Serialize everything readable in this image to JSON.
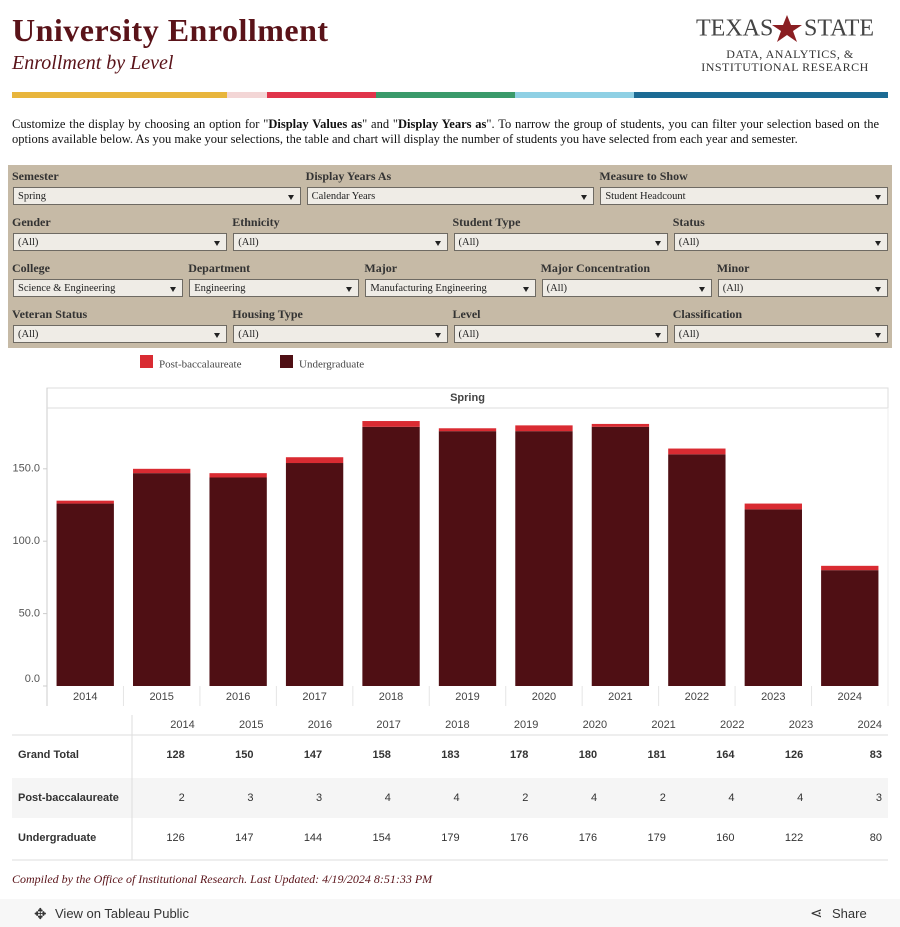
{
  "header": {
    "title": "University Enrollment",
    "subtitle": "Enrollment by Level",
    "logo": {
      "word1": "TEXAS",
      "word2": "STATE",
      "line1": "DATA, ANALYTICS, &",
      "line2": "INSTITUTIONAL RESEARCH"
    }
  },
  "intro": {
    "parts": [
      "Customize the display by choosing an option for \"",
      "Display Values as",
      "\" and \"",
      "Display Years as",
      "\". To narrow the group of students, you can filter your selection based on the options available below. As you make your selections, the table and chart will display the number of students you have selected from each year and semester."
    ]
  },
  "filters": [
    [
      {
        "label": "Semester",
        "value": "Spring"
      },
      {
        "label": "Display Years As",
        "value": "Calendar Years"
      },
      {
        "label": "Measure to Show",
        "value": "Student Headcount"
      }
    ],
    [
      {
        "label": "Gender",
        "value": "(All)"
      },
      {
        "label": "Ethnicity",
        "value": "(All)"
      },
      {
        "label": "Student Type",
        "value": "(All)"
      },
      {
        "label": "Status",
        "value": "(All)"
      }
    ],
    [
      {
        "label": "College",
        "value": "Science & Engineering"
      },
      {
        "label": "Department",
        "value": "Engineering"
      },
      {
        "label": "Major",
        "value": "Manufacturing Engineering"
      },
      {
        "label": "Major Concentration",
        "value": "(All)"
      },
      {
        "label": "Minor",
        "value": "(All)"
      }
    ],
    [
      {
        "label": "Veteran Status",
        "value": "(All)"
      },
      {
        "label": "Housing Type",
        "value": "(All)"
      },
      {
        "label": "Level",
        "value": "(All)"
      },
      {
        "label": "Classification",
        "value": "(All)"
      }
    ]
  ],
  "chart_data": {
    "type": "stacked_bar",
    "title": "Spring",
    "categories": [
      "2014",
      "2015",
      "2016",
      "2017",
      "2018",
      "2019",
      "2020",
      "2021",
      "2022",
      "2023",
      "2024"
    ],
    "series": [
      {
        "name": "Post-baccalaureate",
        "color": "#d92b32",
        "values": [
          2,
          3,
          3,
          4,
          4,
          2,
          4,
          2,
          4,
          4,
          3
        ]
      },
      {
        "name": "Undergraduate",
        "color": "#4f0f14",
        "values": [
          126,
          147,
          144,
          154,
          179,
          176,
          176,
          179,
          160,
          122,
          80
        ]
      }
    ],
    "ylim": [
      0,
      192
    ],
    "yticks": [
      {
        "value": 0,
        "label": "0.0"
      },
      {
        "value": 50,
        "label": "50.0"
      },
      {
        "value": 100,
        "label": "100.0"
      },
      {
        "value": 150,
        "label": "150.0"
      }
    ],
    "grid": false
  },
  "table": {
    "total_label": "Grand Total",
    "totals": [
      128,
      150,
      147,
      158,
      183,
      178,
      180,
      181,
      164,
      126,
      83
    ]
  },
  "footer": "Compiled by the Office of Institutional Research. Last Updated: 4/19/2024 8:51:33 PM",
  "toolbar": {
    "view": "View on Tableau Public",
    "share": "Share"
  }
}
